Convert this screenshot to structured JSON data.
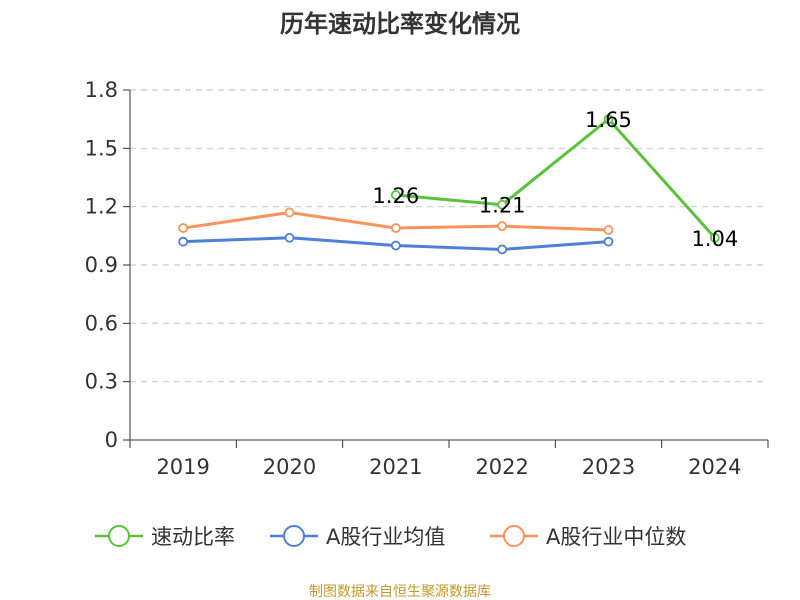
{
  "chart_data": {
    "type": "line",
    "title": "历年速动比率变化情况",
    "categories": [
      "2019",
      "2020",
      "2021",
      "2022",
      "2023",
      "2024"
    ],
    "ylim": [
      0,
      1.8
    ],
    "yticks": [
      0,
      0.3,
      0.6,
      0.9,
      1.2,
      1.5,
      1.8
    ],
    "ytick_labels": [
      "0",
      "0.3",
      "0.6",
      "0.9",
      "1.2",
      "1.5",
      "1.8"
    ],
    "grid": true,
    "legend_position": "bottom",
    "series": [
      {
        "name": "速动比率",
        "color": "#5ac23a",
        "values": [
          null,
          null,
          1.26,
          1.21,
          1.65,
          1.04
        ],
        "labels": [
          null,
          null,
          "1.26",
          "1.21",
          "1.65",
          "1.04"
        ]
      },
      {
        "name": "A股行业均值",
        "color": "#4f7fd9",
        "values": [
          1.02,
          1.04,
          1.0,
          0.98,
          1.02,
          null
        ],
        "labels": [
          null,
          null,
          null,
          null,
          null,
          null
        ]
      },
      {
        "name": "A股行业中位数",
        "color": "#f8935e",
        "values": [
          1.09,
          1.17,
          1.09,
          1.1,
          1.08,
          null
        ],
        "labels": [
          null,
          null,
          null,
          null,
          null,
          null
        ]
      }
    ],
    "source": "制图数据来自恒生聚源数据库"
  }
}
